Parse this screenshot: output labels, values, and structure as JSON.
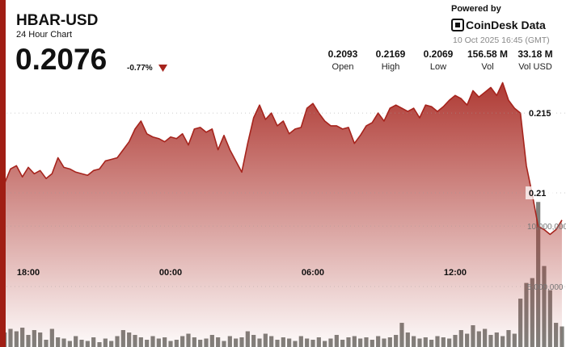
{
  "header": {
    "symbol": "HBAR-USD",
    "subtitle": "24 Hour Chart",
    "price": "0.2076",
    "change": "-0.77%",
    "stats": [
      {
        "value": "0.2093",
        "label": "Open"
      },
      {
        "value": "0.2169",
        "label": "High"
      },
      {
        "value": "0.2069",
        "label": "Low"
      },
      {
        "value": "156.58 M",
        "label": "Vol"
      },
      {
        "value": "33.18 M",
        "label": "Vol USD"
      }
    ],
    "powered_by": "Powered by",
    "brand": "CoinDesk Data",
    "timestamp": "10 Oct 2025 16:45 (GMT)"
  },
  "chart_data": {
    "type": "line",
    "categories": [
      null,
      null,
      null,
      null,
      "18:00",
      null,
      null,
      null,
      null,
      null,
      null,
      null,
      null,
      null,
      null,
      null,
      null,
      null,
      null,
      null,
      null,
      null,
      null,
      null,
      null,
      null,
      null,
      null,
      "00:00",
      null,
      null,
      null,
      null,
      null,
      null,
      null,
      null,
      null,
      null,
      null,
      null,
      null,
      null,
      null,
      null,
      null,
      null,
      null,
      null,
      null,
      null,
      null,
      "06:00",
      null,
      null,
      null,
      null,
      null,
      null,
      null,
      null,
      null,
      null,
      null,
      null,
      null,
      null,
      null,
      null,
      null,
      null,
      null,
      null,
      null,
      null,
      null,
      "12:00",
      null,
      null,
      null,
      null,
      null,
      null,
      null,
      null,
      null,
      null,
      null,
      null,
      null,
      null,
      null,
      null,
      null,
      null
    ],
    "series": [
      {
        "color": "#a6241d",
        "values": [
          0.2106,
          0.2115,
          0.2117,
          0.211,
          0.2116,
          0.2112,
          0.2114,
          0.2109,
          0.2112,
          0.2122,
          0.2116,
          0.2115,
          0.2113,
          0.2112,
          0.2111,
          0.2114,
          0.2115,
          0.212,
          0.2121,
          0.2122,
          0.2127,
          0.2132,
          0.214,
          0.2145,
          0.2137,
          0.2135,
          0.2134,
          0.2132,
          0.2135,
          0.2134,
          0.2137,
          0.213,
          0.214,
          0.2141,
          0.2138,
          0.214,
          0.2127,
          0.2136,
          0.2127,
          0.212,
          0.2113,
          0.2131,
          0.2147,
          0.2155,
          0.2146,
          0.215,
          0.2142,
          0.2145,
          0.2137,
          0.214,
          0.2141,
          0.2153,
          0.2156,
          0.215,
          0.2145,
          0.2142,
          0.2142,
          0.214,
          0.2141,
          0.2131,
          0.2136,
          0.2142,
          0.2144,
          0.215,
          0.2145,
          0.2153,
          0.2155,
          0.2153,
          0.2151,
          0.2153,
          0.2147,
          0.2155,
          0.2154,
          0.2151,
          0.2154,
          0.2158,
          0.2161,
          0.2159,
          0.2155,
          0.2164,
          0.216,
          0.2163,
          0.2166,
          0.2161,
          0.2169,
          0.2158,
          0.2153,
          0.215,
          0.2117,
          0.2099,
          0.2079,
          0.2077,
          0.2074,
          0.2077,
          0.2083
        ]
      },
      {
        "type": "bar",
        "axis": "y2",
        "color": "#6b6b66",
        "values": [
          1200000,
          1500000,
          1300000,
          1600000,
          1000000,
          1400000,
          1200000,
          600000,
          1500000,
          800000,
          700000,
          500000,
          900000,
          600000,
          500000,
          800000,
          400000,
          700000,
          500000,
          900000,
          1400000,
          1200000,
          1000000,
          800000,
          600000,
          900000,
          700000,
          800000,
          500000,
          600000,
          900000,
          1100000,
          800000,
          600000,
          700000,
          1000000,
          800000,
          500000,
          900000,
          700000,
          800000,
          1300000,
          1000000,
          700000,
          1100000,
          900000,
          600000,
          800000,
          700000,
          500000,
          900000,
          700000,
          600000,
          800000,
          500000,
          700000,
          1000000,
          600000,
          800000,
          900000,
          700000,
          800000,
          600000,
          900000,
          700000,
          800000,
          1000000,
          2000000,
          1200000,
          900000,
          700000,
          800000,
          600000,
          900000,
          800000,
          700000,
          1000000,
          1400000,
          1100000,
          1800000,
          1300000,
          1500000,
          1000000,
          1200000,
          900000,
          1400000,
          1100000,
          4000000,
          5300000,
          5700000,
          12000000,
          6700000,
          4700000,
          2000000,
          1700000
        ]
      }
    ],
    "ylim": [
      0.20035,
      0.21753
    ],
    "yticks": [
      0.21,
      0.215
    ],
    "y2lim": [
      0,
      22700000
    ],
    "y2ticks": [
      {
        "value": 5000000,
        "label": "5,000,000"
      },
      {
        "value": 10000000,
        "label": "10,000,000"
      }
    ],
    "grid": true
  }
}
